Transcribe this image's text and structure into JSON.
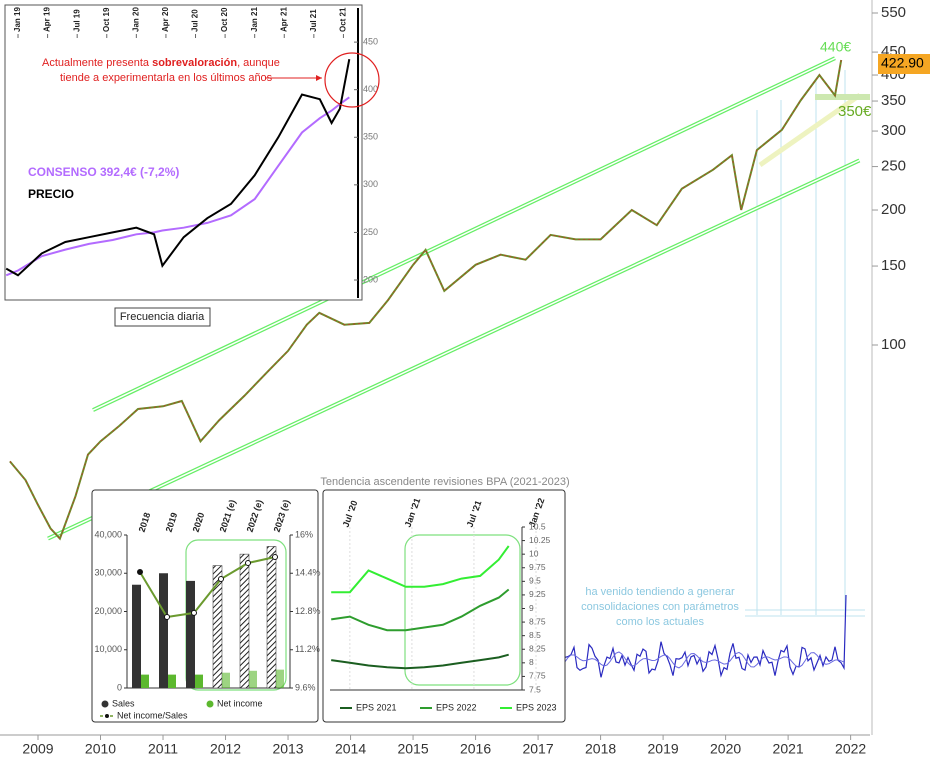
{
  "chart_data": [
    {
      "type": "line",
      "log_scale": true,
      "xlim": [
        2008.392,
        2022.31
      ],
      "ylim": [
        13.5,
        588
      ],
      "xticks": [
        2009,
        2010,
        2011,
        2012,
        2013,
        2014,
        2015,
        2016,
        2017,
        2018,
        2019,
        2020,
        2021,
        2022
      ],
      "yticks": [
        550,
        450,
        400,
        350,
        300,
        250,
        200,
        150,
        100
      ],
      "series": [
        {
          "color": "#6f8a2a",
          "x": [
            2008.55,
            2008.8,
            2009.0,
            2009.2,
            2009.35,
            2009.6,
            2009.8,
            2010.0,
            2010.3,
            2010.6,
            2011.0,
            2011.3,
            2011.6,
            2011.9,
            2012.3,
            2012.7,
            2013.0,
            2013.3,
            2013.5,
            2013.9,
            2014.3,
            2014.6,
            2015.0,
            2015.2,
            2015.5,
            2016.0,
            2016.4,
            2016.8,
            2017.2,
            2017.6,
            2018.0,
            2018.5,
            2018.9,
            2019.3,
            2019.8,
            2020.1,
            2020.25,
            2020.5,
            2020.9,
            2021.2,
            2021.5,
            2021.75,
            2021.85
          ],
          "values": [
            55,
            50,
            44,
            39,
            37,
            46,
            57,
            61,
            66,
            72,
            73,
            75,
            61,
            68,
            77,
            88,
            97,
            111,
            118,
            111,
            112,
            126,
            151,
            163,
            132,
            151,
            159,
            155,
            176,
            172,
            172,
            200,
            185,
            223,
            246,
            265,
            200,
            272,
            302,
            351,
            400,
            360,
            432
          ]
        }
      ],
      "channels": [
        {
          "x": [
            2009.88,
            2021.75
          ],
          "values": [
            71.6,
            436
          ]
        },
        {
          "x": [
            2009.16,
            2022.14
          ],
          "values": [
            37,
            258
          ]
        }
      ],
      "channel_color": "#66ee66",
      "last_price": "422.90",
      "target_high": "440€",
      "target_low": "350€",
      "note": [
        "ha venido tendiendo a generar",
        "consolidaciones con parámetros",
        "como los actuales"
      ]
    },
    {
      "type": "line",
      "xlim": [
        2018.89,
        2021.89
      ],
      "ylim": [
        179,
        489
      ],
      "xticks": [
        {
          "value": 2019.0,
          "label": "Jan 19"
        },
        {
          "value": 2019.25,
          "label": "Apr 19"
        },
        {
          "value": 2019.5,
          "label": "Jul 19"
        },
        {
          "value": 2019.75,
          "label": "Oct 19"
        },
        {
          "value": 2020.0,
          "label": "Jan 20"
        },
        {
          "value": 2020.25,
          "label": "Apr 20"
        },
        {
          "value": 2020.5,
          "label": "Jul 20"
        },
        {
          "value": 2020.75,
          "label": "Oct 20"
        },
        {
          "value": 2021.0,
          "label": "Jan 21"
        },
        {
          "value": 2021.25,
          "label": "Apr 21"
        },
        {
          "value": 2021.5,
          "label": "Jul 21"
        },
        {
          "value": 2021.75,
          "label": "Oct 21"
        }
      ],
      "yticks": [
        450,
        400,
        350,
        300,
        250,
        200
      ],
      "x": [
        2018.9,
        2019.0,
        2019.2,
        2019.4,
        2019.6,
        2019.8,
        2020.0,
        2020.15,
        2020.22,
        2020.4,
        2020.6,
        2020.8,
        2021.0,
        2021.2,
        2021.4,
        2021.55,
        2021.65,
        2021.72,
        2021.8
      ],
      "series": [
        {
          "name": "PRECIO",
          "color": "#000000",
          "values": [
            212,
            205,
            228,
            240,
            245,
            250,
            255,
            248,
            215,
            245,
            265,
            280,
            310,
            350,
            395,
            390,
            365,
            380,
            432
          ]
        },
        {
          "name": "CONSENSO 392,4€ (-7,2%)",
          "color": "#b36bff",
          "values": [
            205,
            210,
            225,
            232,
            238,
            242,
            248,
            250,
            252,
            255,
            260,
            268,
            285,
            320,
            355,
            370,
            378,
            385,
            392
          ]
        }
      ],
      "annotation": [
        "Actualmente presenta ",
        "sobrevaloración",
        ", aunque",
        "tiende a experimentarla en los últimos años"
      ],
      "footer": "Frecuencia diaria"
    },
    {
      "type": "bar",
      "categories": [
        "2018",
        "2019",
        "2020",
        "2021 (e)",
        "2022 (e)",
        "2023 (e)"
      ],
      "hatched": [
        false,
        false,
        false,
        true,
        true,
        true
      ],
      "ylim": [
        0,
        40000
      ],
      "yticks": [
        0,
        {
          "value": 10000,
          "label": "10,000"
        },
        {
          "value": 20000,
          "label": "20,000"
        },
        {
          "value": 30000,
          "label": "30,000"
        },
        {
          "value": 40000,
          "label": "40,000"
        }
      ],
      "y2lim": [
        9.6,
        16
      ],
      "y2ticks": [
        {
          "value": 9.6,
          "label": "9.6%"
        },
        {
          "value": 11.2,
          "label": "11.2%"
        },
        {
          "value": 12.8,
          "label": "12.8%"
        },
        {
          "value": 14.4,
          "label": "14.4%"
        },
        {
          "value": 16,
          "label": "16%"
        }
      ],
      "series": [
        {
          "name": "Sales",
          "color": "#333333",
          "values": [
            27000,
            30000,
            28000,
            32000,
            35000,
            37000
          ]
        },
        {
          "name": "Net income",
          "color": "#5cb82e",
          "values": [
            3500,
            3500,
            3500,
            4000,
            4500,
            4800
          ]
        },
        {
          "name": "Net income/Sales",
          "color": "#6b9a2f",
          "axis": "y2",
          "values": [
            14.45,
            12.57,
            12.74,
            14.16,
            14.83,
            15.08
          ]
        }
      ]
    },
    {
      "type": "line",
      "title": "Tendencia ascendente revisiones BPA (2021-2023)",
      "xlim": [
        2020.34,
        2022.0
      ],
      "ylim": [
        7.5,
        10.5
      ],
      "xticks": [
        {
          "value": 2020.5,
          "label": "Jul '20"
        },
        {
          "value": 2021.0,
          "label": "Jan '21"
        },
        {
          "value": 2021.5,
          "label": "Jul '21"
        },
        {
          "value": 2022.0,
          "label": "Jan '22"
        }
      ],
      "yticks": [
        10.5,
        10.25,
        10,
        9.75,
        9.5,
        9.25,
        9,
        8.75,
        8.5,
        8.25,
        8,
        7.75,
        7.5
      ],
      "x": [
        2020.35,
        2020.5,
        2020.65,
        2020.8,
        2020.95,
        2021.1,
        2021.25,
        2021.4,
        2021.55,
        2021.7,
        2021.78
      ],
      "series": [
        {
          "name": "EPS 2021",
          "color": "#1b5e20",
          "values": [
            8.05,
            8.0,
            7.95,
            7.92,
            7.9,
            7.92,
            7.95,
            8.0,
            8.05,
            8.1,
            8.15
          ]
        },
        {
          "name": "EPS 2022",
          "color": "#2e9d2e",
          "values": [
            8.8,
            8.85,
            8.7,
            8.6,
            8.6,
            8.65,
            8.7,
            8.85,
            9.05,
            9.2,
            9.35
          ]
        },
        {
          "name": "EPS 2023",
          "color": "#33ee33",
          "values": [
            9.3,
            9.3,
            9.7,
            9.55,
            9.4,
            9.4,
            9.45,
            9.55,
            9.6,
            9.9,
            10.15
          ]
        }
      ]
    }
  ]
}
